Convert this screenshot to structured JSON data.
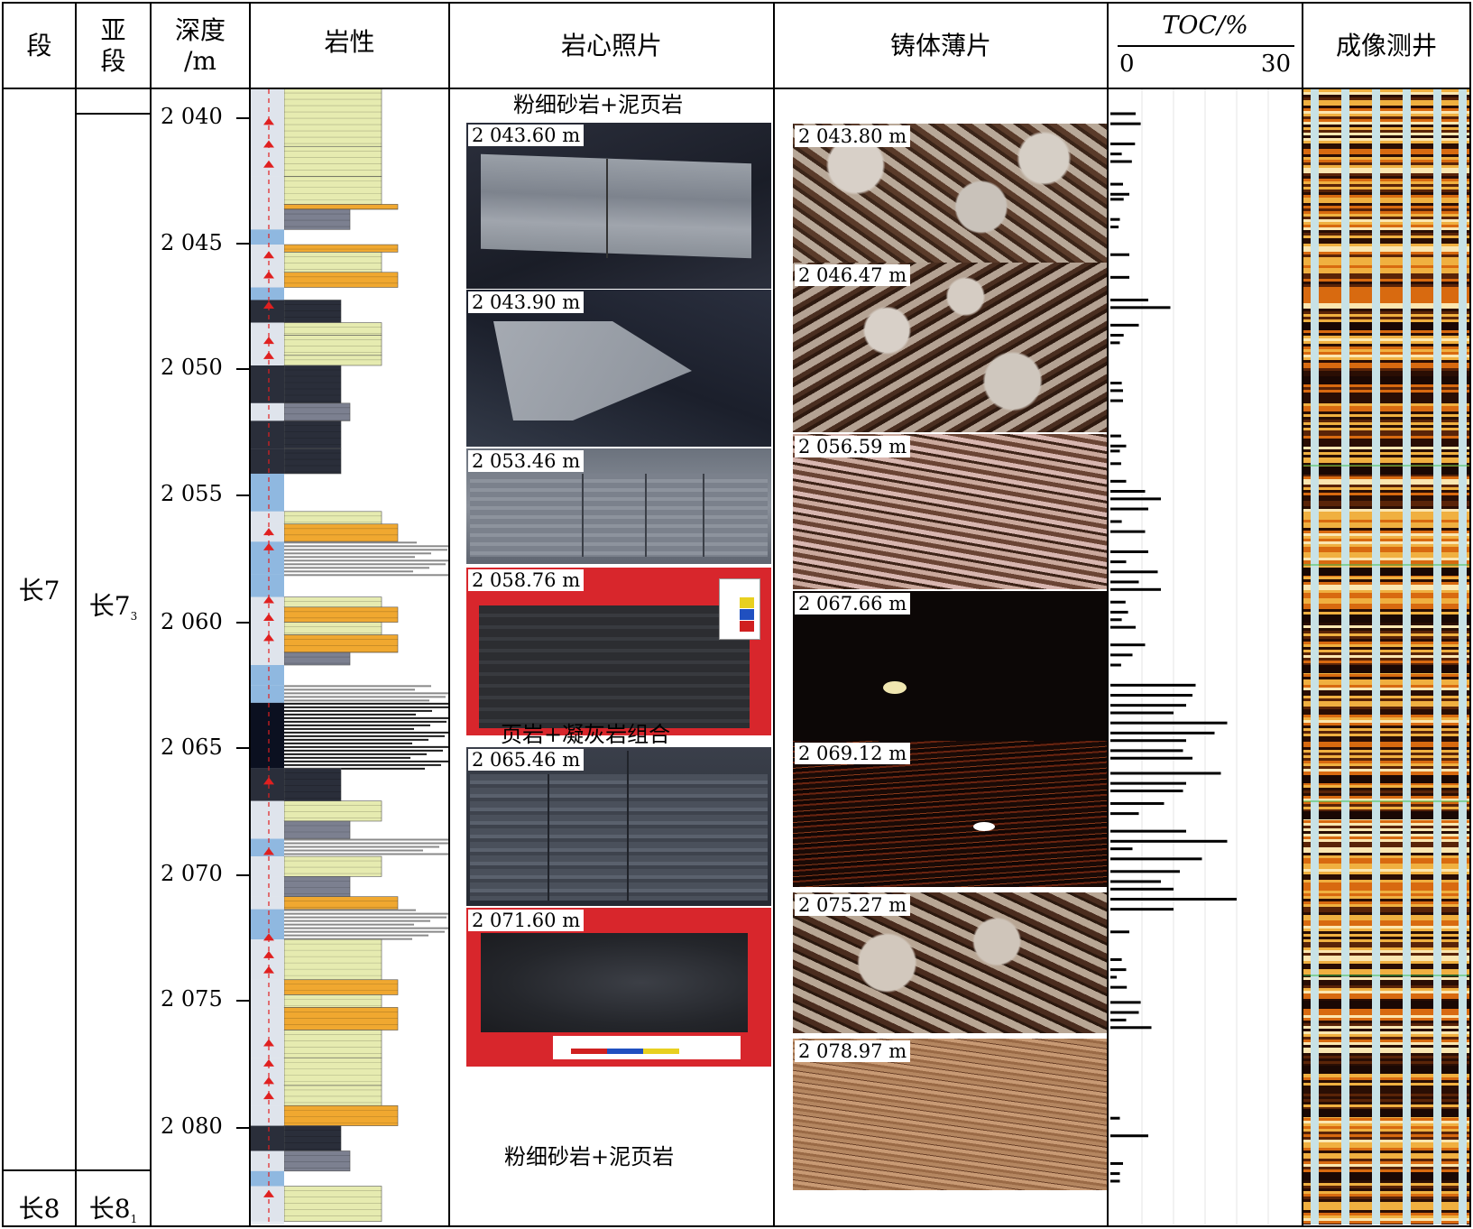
{
  "headers": {
    "duan": "段",
    "yaduan_1": "亚",
    "yaduan_2": "段",
    "depth_1": "深度",
    "depth_2": "/m",
    "lithology": "岩性",
    "core_photo": "岩心照片",
    "thin_section": "铸体薄片",
    "toc_title": "TOC/%",
    "toc_min": "0",
    "toc_max": "30",
    "imaging": "成像测井"
  },
  "formation": {
    "chang7": "长7",
    "chang8": "长8",
    "sub_chang73_main": "长7",
    "sub_chang73_sub": "3",
    "sub_chang81_main": "长8",
    "sub_chang81_sub": "1"
  },
  "depth_ticks": [
    "2 040",
    "2 045",
    "2 050",
    "2 055",
    "2 060",
    "2 065",
    "2 070",
    "2 075",
    "2 080"
  ],
  "core_photos": {
    "title_top": "粉细砂岩+泥页岩",
    "title_mid": "页岩+凝灰岩组合",
    "title_bottom": "粉细砂岩+泥页岩",
    "labels": [
      "2 043.60 m",
      "2 043.90 m",
      "2 053.46 m",
      "2 058.76 m",
      "2 065.46 m",
      "2 071.60 m"
    ]
  },
  "thin_sections": {
    "labels": [
      "2 043.80 m",
      "2 046.47 m",
      "2 056.59 m",
      "2 067.66 m",
      "2 069.12 m",
      "2 075.27 m",
      "2 078.97 m"
    ]
  },
  "colors": {
    "sandstone": "#e6ebb0",
    "orange": "#f0a830",
    "blue": "#8fb8e0",
    "dark": "#2a2e3a",
    "shale_grey": "#7c8090",
    "red_marker": "#e02020"
  },
  "chart_data": {
    "type": "bar",
    "orientation": "horizontal",
    "xlabel": "TOC/%",
    "xlim": [
      0,
      30
    ],
    "ylabel": "深度/m",
    "ylim": [
      2039,
      2084
    ],
    "y_ticks": [
      2040,
      2045,
      2050,
      2055,
      2060,
      2065,
      2070,
      2075,
      2080
    ],
    "depth": [
      2040.0,
      2040.4,
      2041.2,
      2041.6,
      2041.9,
      2042.8,
      2043.2,
      2043.4,
      2044.2,
      2044.5,
      2045.6,
      2046.5,
      2047.4,
      2047.7,
      2048.4,
      2048.8,
      2049.1,
      2050.7,
      2051.0,
      2051.4,
      2052.8,
      2053.2,
      2053.4,
      2053.9,
      2054.6,
      2055.0,
      2055.3,
      2055.7,
      2056.2,
      2056.6,
      2057.4,
      2057.8,
      2058.2,
      2058.6,
      2058.9,
      2059.4,
      2059.8,
      2060.1,
      2060.4,
      2061.1,
      2061.5,
      2061.9,
      2062.7,
      2063.1,
      2063.5,
      2063.8,
      2064.2,
      2064.6,
      2064.9,
      2065.3,
      2065.6,
      2066.2,
      2066.6,
      2066.9,
      2067.4,
      2067.8,
      2068.5,
      2068.9,
      2069.2,
      2069.6,
      2070.1,
      2070.5,
      2070.8,
      2071.2,
      2071.6,
      2072.5,
      2073.6,
      2074.0,
      2074.3,
      2074.7,
      2075.3,
      2075.7,
      2076.0,
      2076.3,
      2079.9,
      2080.6,
      2081.7,
      2082.1,
      2082.4
    ],
    "toc": [
      4.0,
      4.8,
      3.9,
      1.8,
      3.4,
      2.0,
      3.0,
      2.1,
      1.5,
      1.3,
      3.0,
      3.0,
      6.0,
      9.5,
      4.5,
      2.1,
      1.5,
      1.8,
      2.0,
      2.0,
      1.7,
      2.5,
      1.5,
      1.7,
      2.5,
      5.5,
      8.0,
      6.0,
      1.8,
      5.5,
      6.0,
      2.5,
      7.5,
      4.5,
      8.0,
      2.4,
      2.8,
      1.8,
      4.0,
      5.5,
      3.5,
      1.7,
      13.5,
      13.0,
      12.0,
      10.0,
      18.5,
      16.5,
      12.0,
      11.5,
      13.0,
      17.5,
      12.0,
      11.5,
      8.5,
      4.5,
      12.0,
      18.5,
      3.5,
      14.5,
      11.0,
      8.0,
      10.0,
      20.0,
      10.0,
      3.0,
      1.8,
      2.5,
      1.0,
      2.6,
      4.8,
      4.5,
      2.5,
      6.5,
      1.5,
      6.0,
      2.0,
      1.5,
      1.5
    ]
  }
}
